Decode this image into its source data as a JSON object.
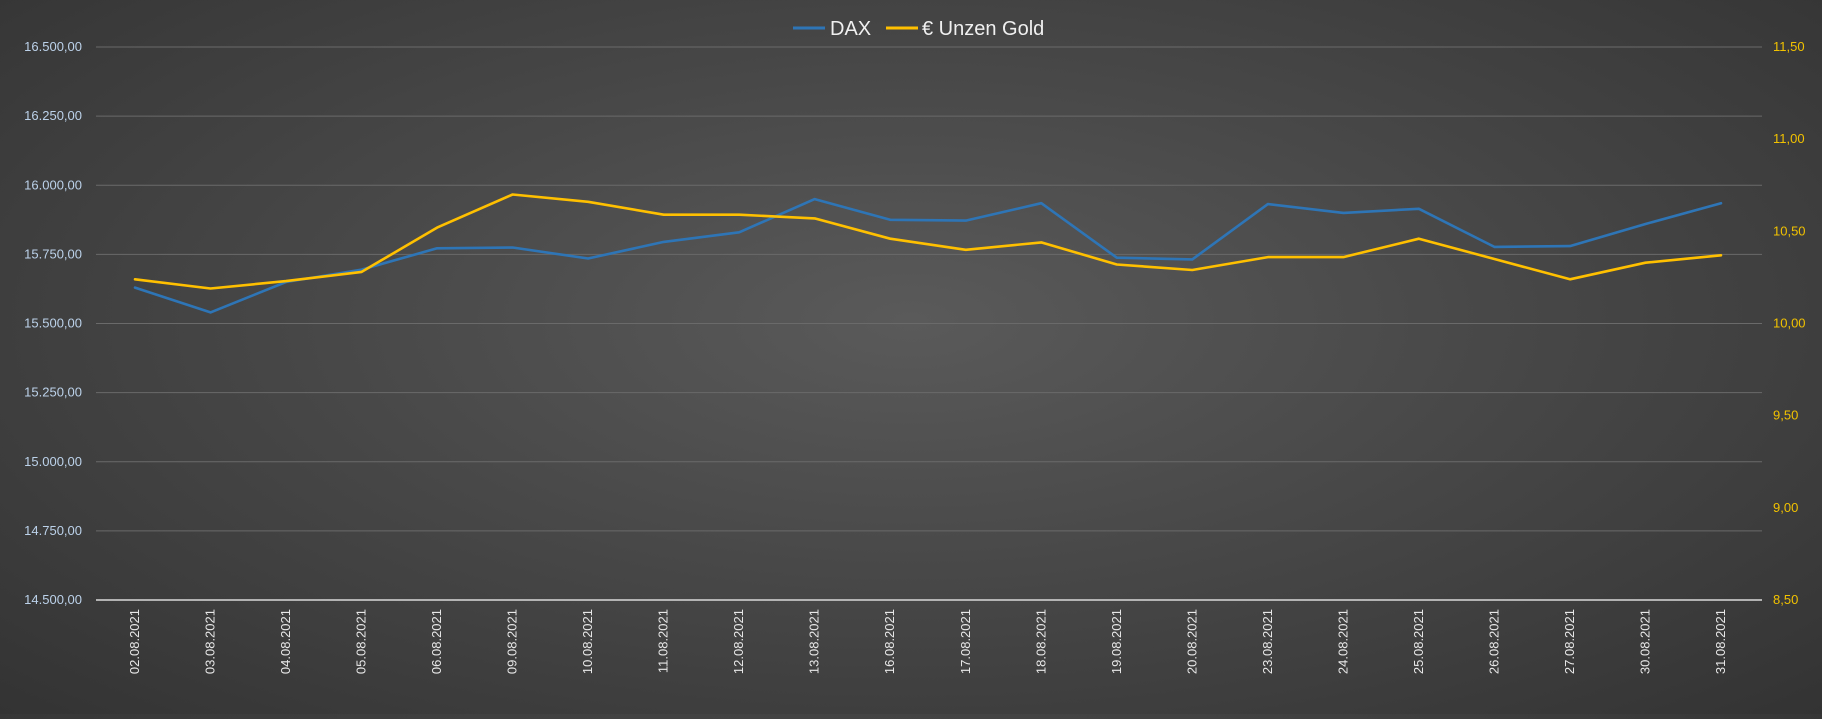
{
  "chart_data": {
    "type": "line",
    "categories": [
      "02.08.2021",
      "03.08.2021",
      "04.08.2021",
      "05.08.2021",
      "06.08.2021",
      "09.08.2021",
      "10.08.2021",
      "11.08.2021",
      "12.08.2021",
      "13.08.2021",
      "16.08.2021",
      "17.08.2021",
      "18.08.2021",
      "19.08.2021",
      "20.08.2021",
      "23.08.2021",
      "24.08.2021",
      "25.08.2021",
      "26.08.2021",
      "27.08.2021",
      "30.08.2021",
      "31.08.2021"
    ],
    "series": [
      {
        "name": "DAX",
        "axis": "left",
        "color": "#2e75b6",
        "values": [
          15630,
          15540,
          15650,
          15695,
          15772,
          15775,
          15735,
          15795,
          15830,
          15950,
          15875,
          15872,
          15935,
          15738,
          15732,
          15932,
          15900,
          15915,
          15777,
          15780,
          15860,
          15935
        ]
      },
      {
        "name": "€ Unzen Gold",
        "axis": "right",
        "color": "#ffc000",
        "values": [
          10.24,
          10.19,
          10.23,
          10.28,
          10.52,
          10.7,
          10.66,
          10.59,
          10.59,
          10.57,
          10.46,
          10.4,
          10.44,
          10.32,
          10.29,
          10.36,
          10.36,
          10.46,
          10.35,
          10.24,
          10.33,
          10.37
        ]
      }
    ],
    "y_left": {
      "ylim": [
        14500,
        16500
      ],
      "ticks": [
        16500,
        16250,
        16000,
        15750,
        15500,
        15250,
        15000,
        14750,
        14500
      ],
      "tick_labels": [
        "16.500,00",
        "16.250,00",
        "16.000,00",
        "15.750,00",
        "15.500,00",
        "15.250,00",
        "15.000,00",
        "14.750,00",
        "14.500,00"
      ],
      "color": "#bcd2ea"
    },
    "y_right": {
      "ylim": [
        8.5,
        11.5
      ],
      "ticks": [
        11.5,
        11.0,
        10.5,
        10.0,
        9.5,
        9.0,
        8.5
      ],
      "tick_labels": [
        "11,50",
        "11,00",
        "10,50",
        "10,00",
        "9,50",
        "9,00",
        "8,50"
      ],
      "color": "#f2c200"
    },
    "grid": true,
    "legend_position": "top-center"
  }
}
